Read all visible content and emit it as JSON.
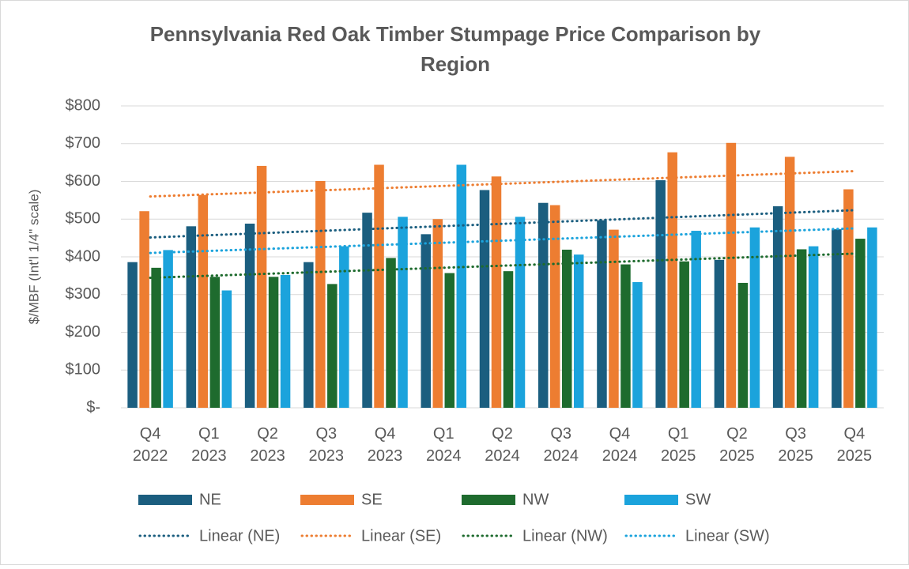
{
  "chart_data": {
    "type": "bar",
    "title": [
      "Pennsylvania Red Oak Timber Stumpage Price Comparison by",
      "Region"
    ],
    "y_label": "$/MBF (Int'l 1/4\" scale)",
    "categories": [
      [
        "Q4",
        "2022"
      ],
      [
        "Q1",
        "2023"
      ],
      [
        "Q2",
        "2023"
      ],
      [
        "Q3",
        "2023"
      ],
      [
        "Q4",
        "2023"
      ],
      [
        "Q1",
        "2024"
      ],
      [
        "Q2",
        "2024"
      ],
      [
        "Q3",
        "2024"
      ],
      [
        "Q4",
        "2024"
      ],
      [
        "Q1",
        "2025"
      ],
      [
        "Q2",
        "2025"
      ],
      [
        "Q3",
        "2025"
      ],
      [
        "Q4",
        "2025"
      ]
    ],
    "series": [
      {
        "name": "NE",
        "color": "#1b5e7f",
        "trendline": "Linear (NE)",
        "values": [
          386,
          481,
          488,
          386,
          517,
          460,
          577,
          543,
          497,
          603,
          392,
          534,
          473
        ]
      },
      {
        "name": "SE",
        "color": "#ed7d31",
        "trendline": "Linear (SE)",
        "values": [
          521,
          564,
          641,
          601,
          644,
          500,
          613,
          537,
          472,
          677,
          702,
          665,
          579
        ]
      },
      {
        "name": "NW",
        "color": "#1e6b2e",
        "trendline": "Linear (NW)",
        "values": [
          371,
          347,
          347,
          328,
          397,
          357,
          362,
          419,
          380,
          388,
          331,
          420,
          448
        ]
      },
      {
        "name": "SW",
        "color": "#1ba3dc",
        "trendline": "Linear (SW)",
        "values": [
          418,
          311,
          352,
          428,
          506,
          644,
          506,
          406,
          333,
          469,
          478,
          428,
          478
        ]
      }
    ],
    "ylim": [
      0,
      800
    ],
    "yticks": [
      {
        "value": 0,
        "label": "$-"
      },
      {
        "value": 100,
        "label": "$100"
      },
      {
        "value": 200,
        "label": "$200"
      },
      {
        "value": 300,
        "label": "$300"
      },
      {
        "value": 400,
        "label": "$400"
      },
      {
        "value": 500,
        "label": "$500"
      },
      {
        "value": 600,
        "label": "$600"
      },
      {
        "value": 700,
        "label": "$700"
      },
      {
        "value": 800,
        "label": "$800"
      }
    ],
    "grid": true
  }
}
